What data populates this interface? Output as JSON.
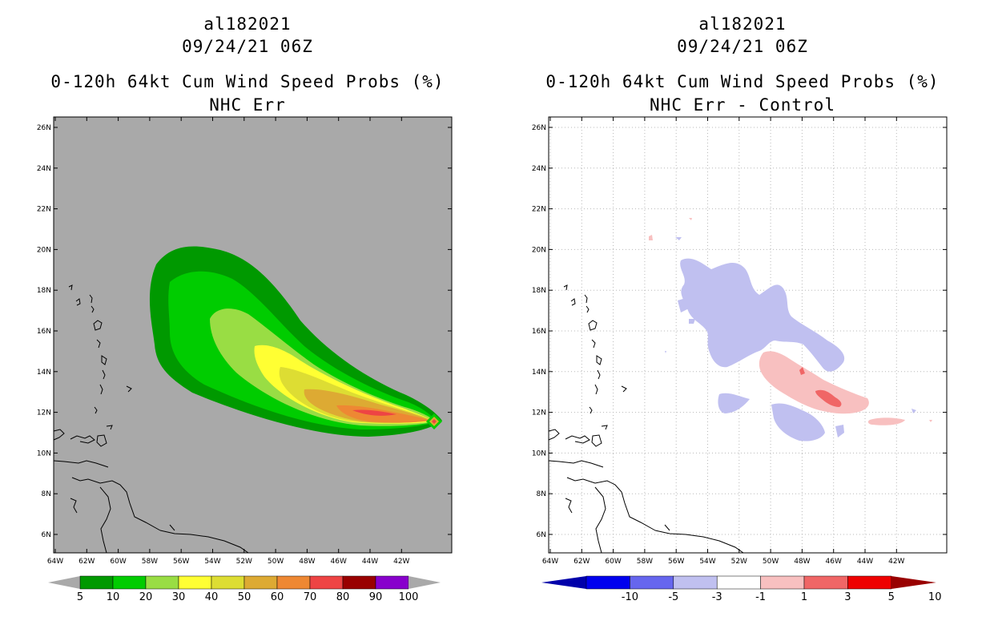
{
  "left_panel": {
    "storm_id": "al182021",
    "datetime": "09/24/21 06Z",
    "product": "0-120h 64kt Cum Wind Speed Probs (%)",
    "subtitle": "NHC Err",
    "background_color": "#a9a9a9",
    "colorbar": {
      "labels": [
        "5",
        "10",
        "20",
        "30",
        "40",
        "50",
        "60",
        "70",
        "80",
        "90",
        "100"
      ],
      "colors": [
        "#009900",
        "#00cc00",
        "#99dd44",
        "#ffff33",
        "#dddd33",
        "#ddaa33",
        "#ee8833",
        "#ee4444",
        "#990000",
        "#8800cc"
      ]
    }
  },
  "right_panel": {
    "storm_id": "al182021",
    "datetime": "09/24/21 06Z",
    "product": "0-120h 64kt Cum Wind Speed Probs (%)",
    "subtitle": "NHC Err - Control",
    "colorbar": {
      "labels": [
        "-10",
        "-5",
        "-3",
        "-1",
        "1",
        "3",
        "5",
        "10"
      ],
      "colors": [
        "#0000aa",
        "#0000ee",
        "#6666ee",
        "#c0c0f0",
        "#ffffff",
        "#f8c0c0",
        "#f06666",
        "#ee0000",
        "#990000"
      ]
    }
  },
  "map": {
    "lat_labels": [
      "26N",
      "24N",
      "22N",
      "20N",
      "18N",
      "16N",
      "14N",
      "12N",
      "10N",
      "8N",
      "6N"
    ],
    "lon_labels": [
      "64W",
      "62W",
      "60W",
      "58W",
      "56W",
      "54W",
      "52W",
      "50W",
      "48W",
      "46W",
      "44W",
      "42W"
    ]
  }
}
